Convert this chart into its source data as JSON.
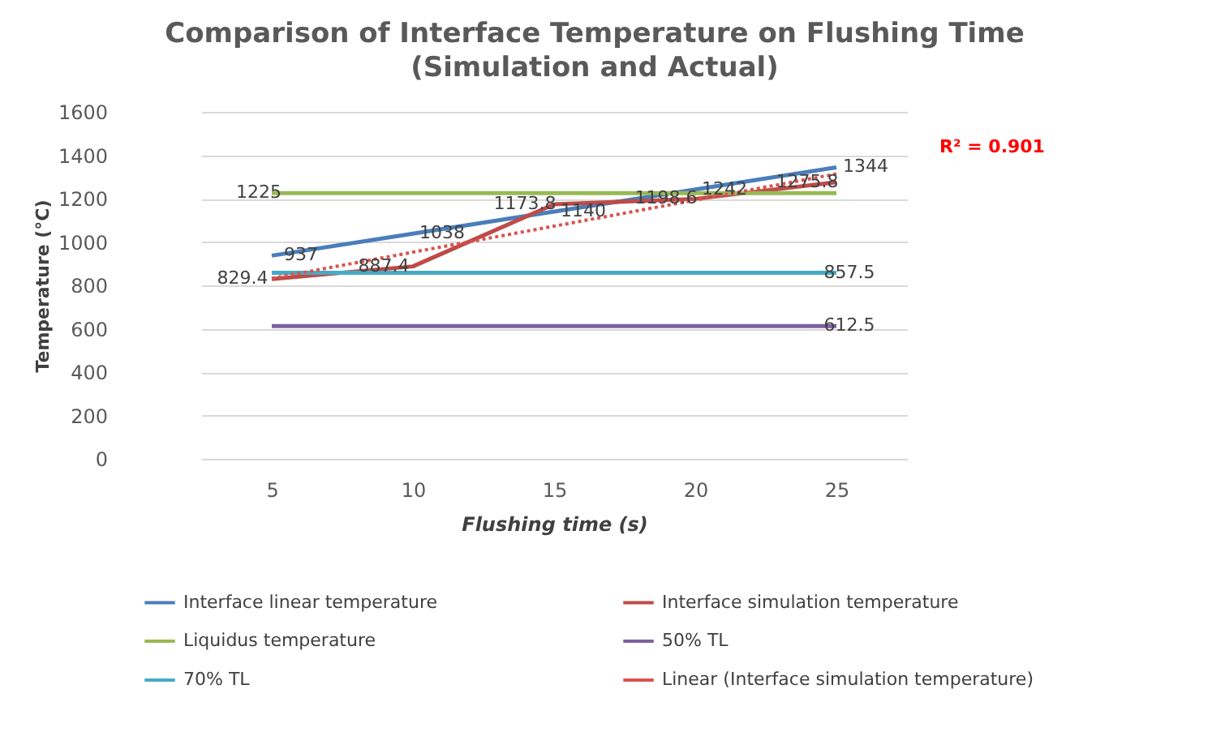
{
  "chart_data": {
    "type": "line",
    "title": "Comparison of Interface Temperature on Flushing Time",
    "subtitle": "(Simulation and Actual)",
    "xlabel": "Flushing time (s)",
    "ylabel": "Temperature (°C)",
    "categories": [
      "5",
      "10",
      "15",
      "20",
      "25"
    ],
    "series": [
      {
        "name": "Interface linear temperature",
        "color": "#4a7ebb",
        "values": [
          937,
          1038,
          1140,
          1242,
          1344
        ],
        "value_labels": [
          "937",
          "1038",
          "1140",
          "1242",
          "1344"
        ]
      },
      {
        "name": "Interface simulation temperature",
        "color": "#be4b48",
        "values": [
          829.4,
          887.4,
          1173.8,
          1198.6,
          1275.8
        ],
        "value_labels": [
          "829.4",
          "887.4",
          "1173.8",
          "1198.6",
          "1275.8"
        ]
      },
      {
        "name": "Liquidus temperature",
        "color": "#98b954",
        "values": [
          1225,
          1225,
          1225,
          1225,
          1225
        ],
        "value_labels": [
          "1225",
          null,
          null,
          null,
          null
        ]
      },
      {
        "name": "50% TL",
        "color": "#7d60a0",
        "values": [
          612.5,
          612.5,
          612.5,
          612.5,
          612.5
        ],
        "value_labels": [
          null,
          null,
          null,
          null,
          "612.5"
        ]
      },
      {
        "name": "70% TL",
        "color": "#46aac5",
        "values": [
          857.5,
          857.5,
          857.5,
          857.5,
          857.5
        ],
        "value_labels": [
          null,
          null,
          null,
          null,
          "857.5"
        ]
      },
      {
        "name": "Linear (Interface simulation temperature)",
        "color": "#d9534f",
        "line_style": "dotted",
        "values": [
          832,
          953,
          1073,
          1193,
          1314
        ]
      }
    ],
    "annotations": [
      "R² = 0.901"
    ],
    "ylim": [
      0,
      1600
    ],
    "yticks": [
      0,
      200,
      400,
      600,
      800,
      1000,
      1200,
      1400,
      1600
    ],
    "grid": "y",
    "legend": "bottom",
    "line_style": "solid",
    "marker": "none"
  }
}
